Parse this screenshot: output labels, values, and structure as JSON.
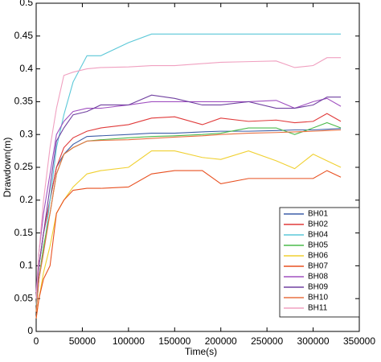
{
  "chart_data": {
    "type": "line",
    "xlabel": "Time(s)",
    "ylabel": "Drawdown(m)",
    "x": [
      0,
      3000,
      8000,
      15000,
      22000,
      30000,
      40000,
      55000,
      70000,
      100000,
      125000,
      150000,
      180000,
      200000,
      230000,
      260000,
      280000,
      300000,
      315000,
      330000
    ],
    "xlim": [
      0,
      350000
    ],
    "xticks": [
      0,
      50000,
      100000,
      150000,
      200000,
      250000,
      300000,
      350000
    ],
    "ylim": [
      0,
      0.5
    ],
    "yticks": [
      0,
      0.05,
      0.1,
      0.15,
      0.2,
      0.25,
      0.3,
      0.35,
      0.4,
      0.45,
      0.5
    ],
    "grid": false,
    "legend": "lower right",
    "series": [
      {
        "name": "BH01",
        "color": "#3d5ea8",
        "values": [
          0.05,
          0.1,
          0.15,
          0.2,
          0.25,
          0.27,
          0.285,
          0.297,
          0.298,
          0.3,
          0.302,
          0.302,
          0.304,
          0.305,
          0.305,
          0.306,
          0.307,
          0.307,
          0.308,
          0.309
        ]
      },
      {
        "name": "BH02",
        "color": "#e03a3a",
        "values": [
          0.04,
          0.1,
          0.15,
          0.2,
          0.25,
          0.28,
          0.295,
          0.305,
          0.31,
          0.315,
          0.325,
          0.327,
          0.315,
          0.325,
          0.32,
          0.322,
          0.318,
          0.32,
          0.332,
          0.32
        ]
      },
      {
        "name": "BH04",
        "color": "#5bc8d8",
        "values": [
          0.04,
          0.08,
          0.12,
          0.2,
          0.28,
          0.33,
          0.38,
          0.42,
          0.42,
          0.44,
          0.453,
          0.453,
          0.453,
          0.453,
          0.453,
          0.453,
          0.453,
          0.453,
          0.453,
          0.453
        ]
      },
      {
        "name": "BH05",
        "color": "#4cbb4c",
        "values": [
          0.03,
          0.08,
          0.13,
          0.18,
          0.24,
          0.27,
          0.28,
          0.29,
          0.292,
          0.295,
          0.297,
          0.298,
          0.3,
          0.302,
          0.31,
          0.31,
          0.3,
          0.31,
          0.318,
          0.31
        ]
      },
      {
        "name": "BH06",
        "color": "#f0d030",
        "values": [
          0.02,
          0.05,
          0.09,
          0.13,
          0.18,
          0.2,
          0.22,
          0.24,
          0.245,
          0.25,
          0.275,
          0.275,
          0.265,
          0.262,
          0.275,
          0.26,
          0.248,
          0.27,
          0.26,
          0.25
        ]
      },
      {
        "name": "BH07",
        "color": "#e85020",
        "values": [
          0.02,
          0.05,
          0.08,
          0.1,
          0.18,
          0.2,
          0.215,
          0.218,
          0.218,
          0.22,
          0.24,
          0.245,
          0.245,
          0.225,
          0.233,
          0.233,
          0.233,
          0.233,
          0.245,
          0.235
        ]
      },
      {
        "name": "BH08",
        "color": "#a050c0",
        "values": [
          0.06,
          0.12,
          0.18,
          0.24,
          0.3,
          0.32,
          0.335,
          0.34,
          0.34,
          0.345,
          0.35,
          0.35,
          0.35,
          0.35,
          0.35,
          0.352,
          0.34,
          0.35,
          0.355,
          0.343
        ]
      },
      {
        "name": "BH09",
        "color": "#7040a0",
        "values": [
          0.05,
          0.1,
          0.15,
          0.22,
          0.29,
          0.31,
          0.33,
          0.335,
          0.345,
          0.345,
          0.36,
          0.355,
          0.345,
          0.345,
          0.35,
          0.34,
          0.34,
          0.345,
          0.357,
          0.357
        ]
      },
      {
        "name": "BH10",
        "color": "#e87040",
        "values": [
          0.03,
          0.08,
          0.12,
          0.18,
          0.24,
          0.27,
          0.28,
          0.29,
          0.291,
          0.292,
          0.294,
          0.296,
          0.298,
          0.3,
          0.302,
          0.303,
          0.304,
          0.305,
          0.306,
          0.307
        ]
      },
      {
        "name": "BH11",
        "color": "#f0a0c0",
        "values": [
          0.05,
          0.12,
          0.2,
          0.28,
          0.34,
          0.39,
          0.395,
          0.4,
          0.402,
          0.403,
          0.405,
          0.405,
          0.408,
          0.41,
          0.411,
          0.412,
          0.402,
          0.405,
          0.417,
          0.417
        ]
      }
    ]
  }
}
